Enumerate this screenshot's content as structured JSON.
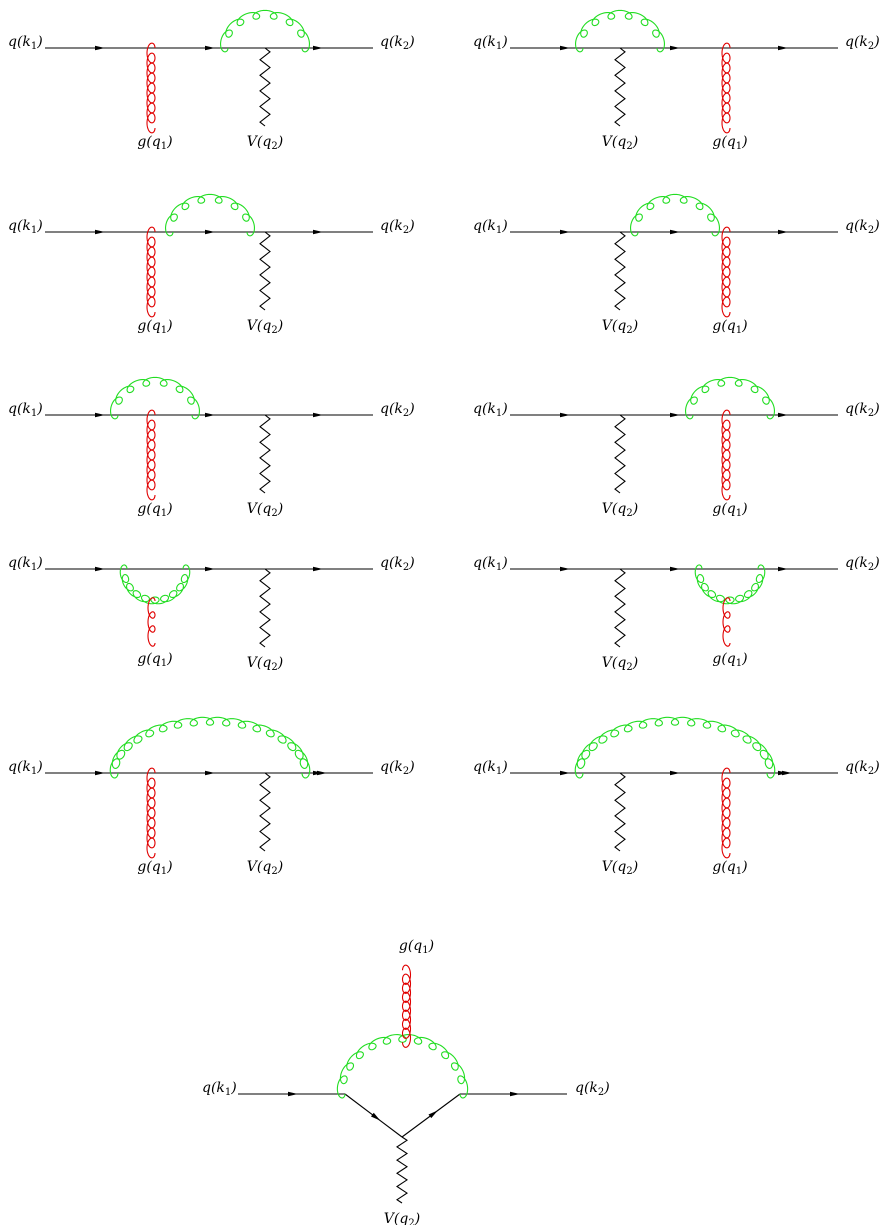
{
  "labels": {
    "quark_in": {
      "base": "q",
      "arg": "k",
      "sub": "1"
    },
    "quark_out": {
      "base": "q",
      "arg": "k",
      "sub": "2"
    },
    "gluon": {
      "base": "g",
      "arg": "q",
      "sub": "1"
    },
    "boson": {
      "base": "V",
      "arg": "q",
      "sub": "2"
    }
  },
  "colors": {
    "quark_line": "#000000",
    "boson_line": "#000000",
    "external_gluon": "#e00000",
    "internal_gluon": "#22dd22"
  },
  "diagrams": [
    {
      "id": "d1",
      "order": [
        "gluon",
        "boson"
      ],
      "loop": "arc",
      "loop_span": "at-boson"
    },
    {
      "id": "d2",
      "order": [
        "boson",
        "gluon"
      ],
      "loop": "arc",
      "loop_span": "at-boson"
    },
    {
      "id": "d3",
      "order": [
        "gluon",
        "boson"
      ],
      "loop": "arc",
      "loop_span": "between"
    },
    {
      "id": "d4",
      "order": [
        "boson",
        "gluon"
      ],
      "loop": "arc",
      "loop_span": "between"
    },
    {
      "id": "d5",
      "order": [
        "gluon",
        "boson"
      ],
      "loop": "arc",
      "loop_span": "at-gluon"
    },
    {
      "id": "d6",
      "order": [
        "boson",
        "gluon"
      ],
      "loop": "arc",
      "loop_span": "at-gluon"
    },
    {
      "id": "d7",
      "order": [
        "gluon",
        "boson"
      ],
      "loop": "bubble",
      "loop_span": "at-gluon"
    },
    {
      "id": "d8",
      "order": [
        "boson",
        "gluon"
      ],
      "loop": "bubble",
      "loop_span": "at-gluon"
    },
    {
      "id": "d9",
      "order": [
        "gluon",
        "boson"
      ],
      "loop": "arc",
      "loop_span": "both"
    },
    {
      "id": "d10",
      "order": [
        "boson",
        "gluon"
      ],
      "loop": "arc",
      "loop_span": "both"
    },
    {
      "id": "d11",
      "order": [
        "gluon",
        "boson"
      ],
      "loop": "triangle",
      "loop_span": "three-gluon-vertex"
    }
  ]
}
